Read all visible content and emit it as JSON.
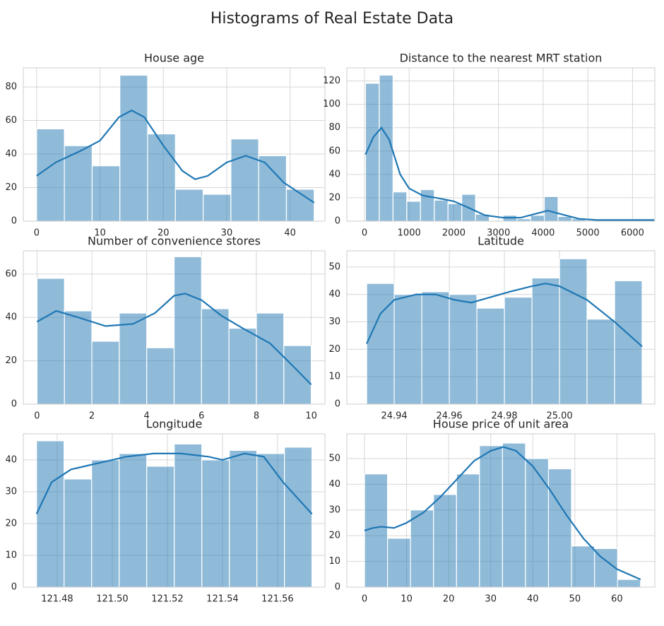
{
  "title": "Histograms of Real Estate Data",
  "chart_data": [
    {
      "type": "histogram",
      "title": "House age",
      "color": "#1f77b4",
      "kde_color": "#1f77b4",
      "grid": true,
      "bins": [
        0,
        4.38,
        8.76,
        13.14,
        17.52,
        21.9,
        26.28,
        30.66,
        35.04,
        39.42,
        43.8
      ],
      "counts": [
        55,
        45,
        33,
        87,
        52,
        19,
        16,
        49,
        39,
        19
      ],
      "kde": {
        "x": [
          0,
          3,
          7,
          10,
          13,
          15,
          17,
          20,
          23,
          25,
          27,
          30,
          33,
          36,
          39,
          43.8
        ],
        "y": [
          27,
          35,
          42,
          48,
          62,
          66,
          62,
          45,
          30,
          25,
          27,
          35,
          39,
          35,
          23,
          11
        ]
      },
      "xlim": [
        -2.1,
        45.5
      ],
      "ylim": [
        0,
        91.4
      ],
      "xticks": [
        0,
        10,
        20,
        30,
        40
      ],
      "yticks": [
        0,
        20,
        40,
        60,
        80
      ]
    },
    {
      "type": "histogram",
      "title": "Distance to the nearest MRT station",
      "color": "#1f77b4",
      "kde_color": "#1f77b4",
      "grid": true,
      "bins": [
        23.4,
        331.2,
        639.1,
        946.9,
        1254.8,
        1562.6,
        1870.4,
        2178.3,
        2486.1,
        2794.0,
        3101.8,
        3409.6,
        3717.5,
        4025.3,
        4333.2,
        4641.0,
        4948.8,
        5256.7,
        5564.5,
        5872.4,
        6180.2,
        6488.0
      ],
      "counts": [
        118,
        125,
        25,
        17,
        27,
        18,
        15,
        23,
        6,
        0,
        5,
        2,
        5,
        21,
        4,
        2,
        0,
        0,
        0,
        0,
        1
      ],
      "kde": {
        "x": [
          23,
          200,
          380,
          550,
          800,
          1000,
          1300,
          1600,
          2000,
          2300,
          2700,
          3100,
          3500,
          3800,
          4100,
          4400,
          4800,
          5200,
          6000,
          6488
        ],
        "y": [
          57,
          72,
          80,
          70,
          40,
          28,
          22,
          20,
          17,
          12,
          5,
          3,
          3,
          6,
          9,
          6,
          2,
          1,
          1,
          1
        ]
      },
      "xlim": [
        -395,
        6500
      ],
      "ylim": [
        0,
        131.25
      ],
      "xticks": [
        0,
        1000,
        2000,
        3000,
        4000,
        5000,
        6000
      ],
      "yticks": [
        0,
        20,
        40,
        60,
        80,
        100,
        120
      ]
    },
    {
      "type": "histogram",
      "title": "Number of convenience stores",
      "color": "#1f77b4",
      "kde_color": "#1f77b4",
      "grid": true,
      "bins": [
        0,
        1,
        2,
        3,
        4,
        5,
        6,
        7,
        8,
        9,
        10
      ],
      "counts": [
        58,
        43,
        29,
        42,
        26,
        68,
        44,
        35,
        42,
        27
      ],
      "kde": {
        "x": [
          0,
          0.7,
          1.5,
          2.5,
          3.5,
          4.3,
          5,
          5.4,
          6,
          6.7,
          7.5,
          8.5,
          9.3,
          10
        ],
        "y": [
          38,
          43,
          40,
          36,
          37,
          42,
          50,
          51,
          48,
          41,
          35,
          28,
          18,
          9
        ]
      },
      "xlim": [
        -0.5,
        10.5
      ],
      "ylim": [
        0,
        70.7
      ],
      "xticks": [
        0,
        2,
        4,
        6,
        8,
        10
      ],
      "yticks": [
        0,
        20,
        40,
        60
      ]
    },
    {
      "type": "histogram",
      "title": "Latitude",
      "color": "#1f77b4",
      "kde_color": "#1f77b4",
      "grid": true,
      "bins": [
        24.93,
        24.94,
        24.95,
        24.96,
        24.97,
        24.98,
        24.99,
        25.0,
        25.01,
        25.02,
        25.03
      ],
      "counts": [
        44,
        40,
        41,
        40,
        35,
        39,
        46,
        53,
        31,
        45
      ],
      "kde": {
        "x": [
          24.93,
          24.935,
          24.94,
          24.948,
          24.955,
          24.962,
          24.968,
          24.975,
          24.982,
          24.99,
          24.995,
          25.0,
          25.01,
          25.02,
          25.03
        ],
        "y": [
          22,
          33,
          38,
          40,
          40,
          38,
          37,
          39,
          41,
          43,
          44,
          43,
          38,
          30,
          21
        ]
      },
      "xlim": [
        24.9228,
        25.0346
      ],
      "ylim": [
        0,
        55.9
      ],
      "xticks": [
        24.94,
        24.96,
        24.98,
        {
          "value": 25,
          "label": "25.00"
        }
      ],
      "yticks": [
        0,
        10,
        20,
        30,
        40,
        50
      ]
    },
    {
      "type": "histogram",
      "title": "Longitude",
      "color": "#1f77b4",
      "kde_color": "#1f77b4",
      "grid": true,
      "bins": [
        121.4725,
        121.4825,
        121.4925,
        121.5025,
        121.5125,
        121.5225,
        121.5325,
        121.5425,
        121.5525,
        121.5625,
        121.5725
      ],
      "counts": [
        46,
        34,
        40,
        42,
        38,
        45,
        40,
        43,
        42,
        44
      ],
      "kde": {
        "x": [
          121.4725,
          121.478,
          121.485,
          121.495,
          121.505,
          121.515,
          121.525,
          121.535,
          121.54,
          121.548,
          121.555,
          121.562,
          121.5725
        ],
        "y": [
          23,
          33,
          37,
          39,
          41,
          42,
          42,
          41,
          40,
          42,
          41,
          33,
          23
        ]
      },
      "xlim": [
        121.4677,
        121.5772
      ],
      "ylim": [
        0,
        48.2
      ],
      "xticks": [
        121.48,
        {
          "value": 121.5,
          "label": "121.50"
        },
        121.52,
        121.54,
        121.56
      ],
      "yticks": [
        0,
        10,
        20,
        30,
        40
      ]
    },
    {
      "type": "histogram",
      "title": "House price of unit area",
      "color": "#1f77b4",
      "kde_color": "#1f77b4",
      "grid": true,
      "bins": [
        0,
        5.47,
        10.93,
        16.4,
        21.87,
        27.33,
        32.8,
        38.27,
        43.73,
        49.2,
        54.67,
        60.13,
        65.6
      ],
      "counts": [
        44,
        19,
        30,
        36,
        44,
        55,
        56,
        50,
        46,
        16,
        15,
        3
      ],
      "kde": {
        "x": [
          0,
          2,
          4,
          7,
          10,
          14,
          18,
          22,
          26,
          30,
          33,
          36,
          40,
          44,
          48,
          52,
          56,
          60,
          65.6
        ],
        "y": [
          22,
          23,
          23.5,
          23,
          25,
          29,
          35,
          42,
          49,
          53,
          54.5,
          53,
          47,
          38,
          28,
          19,
          12,
          7,
          3
        ]
      },
      "xlim": [
        -4.2,
        69
      ],
      "ylim": [
        0,
        59.6
      ],
      "xticks": [
        0,
        10,
        20,
        30,
        40,
        50,
        60
      ],
      "yticks": [
        0,
        10,
        20,
        30,
        40,
        50
      ]
    }
  ]
}
